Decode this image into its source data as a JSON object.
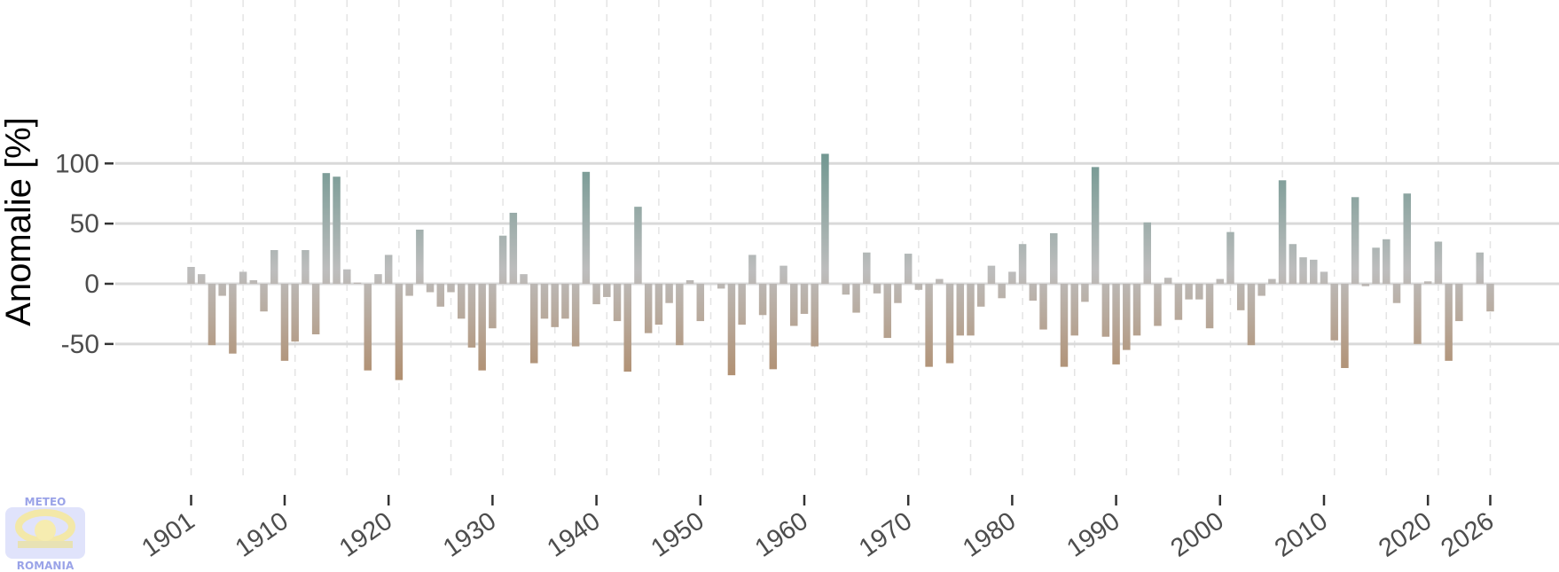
{
  "chart_data": {
    "type": "bar",
    "ylabel": "Anomalie [%]",
    "xlabel": "",
    "ylim": [
      -80,
      108
    ],
    "xlim": [
      1900,
      2033
    ],
    "yticks": [
      -50,
      0,
      50,
      100
    ],
    "xticks": [
      "1901",
      "1910",
      "1920",
      "1930",
      "1940",
      "1950",
      "1960",
      "1970",
      "1980",
      "1990",
      "2000",
      "2010",
      "2020",
      "2026"
    ],
    "grid": true,
    "colors": {
      "positive_high": "#1f6e62",
      "neutral": "#bdbdbd",
      "negative_low": "#a06a32",
      "gridline": "#d9d9d9"
    },
    "x": [
      1901,
      1902,
      1903,
      1904,
      1905,
      1906,
      1907,
      1908,
      1909,
      1910,
      1911,
      1912,
      1913,
      1914,
      1915,
      1916,
      1917,
      1918,
      1919,
      1920,
      1921,
      1922,
      1923,
      1924,
      1925,
      1926,
      1927,
      1928,
      1929,
      1930,
      1931,
      1932,
      1933,
      1934,
      1935,
      1936,
      1937,
      1938,
      1939,
      1940,
      1941,
      1942,
      1943,
      1944,
      1945,
      1946,
      1947,
      1948,
      1949,
      1950,
      1951,
      1952,
      1953,
      1954,
      1955,
      1956,
      1957,
      1958,
      1959,
      1960,
      1961,
      1962,
      1963,
      1964,
      1965,
      1966,
      1967,
      1968,
      1969,
      1970,
      1971,
      1972,
      1973,
      1974,
      1975,
      1976,
      1977,
      1978,
      1979,
      1980,
      1981,
      1982,
      1983,
      1984,
      1985,
      1986,
      1987,
      1988,
      1989,
      1990,
      1991,
      1992,
      1993,
      1994,
      1995,
      1996,
      1997,
      1998,
      1999,
      2000,
      2001,
      2002,
      2003,
      2004,
      2005,
      2006,
      2007,
      2008,
      2009,
      2010,
      2011,
      2012,
      2013,
      2014,
      2015,
      2016,
      2017,
      2018,
      2019,
      2020,
      2021,
      2022,
      2023,
      2024,
      2025,
      2026
    ],
    "values": [
      14,
      8,
      -51,
      -10,
      -58,
      10,
      3,
      -23,
      28,
      -64,
      -48,
      28,
      -42,
      92,
      89,
      12,
      1,
      -72,
      8,
      24,
      -80,
      -10,
      45,
      -7,
      -19,
      -7,
      -29,
      -53,
      -72,
      -37,
      40,
      59,
      8,
      -66,
      -29,
      -36,
      -29,
      -52,
      93,
      -17,
      -11,
      -31,
      -73,
      64,
      -41,
      -34,
      -16,
      -51,
      3,
      -31,
      0,
      -4,
      -76,
      -34,
      24,
      -26,
      -71,
      15,
      -35,
      -25,
      -52,
      108,
      0,
      -9,
      -24,
      26,
      -8,
      -45,
      -16,
      25,
      -5,
      -69,
      4,
      -66,
      -43,
      -43,
      -19,
      15,
      -12,
      10,
      33,
      -14,
      -38,
      42,
      -69,
      -43,
      -15,
      97,
      -44,
      -67,
      -55,
      -43,
      51,
      -35,
      5,
      -30,
      -13,
      -13,
      -37,
      4,
      43,
      -22,
      -51,
      -10,
      4,
      86,
      33,
      22,
      20,
      10,
      -47,
      -70,
      72,
      -2,
      30,
      37,
      -16,
      75,
      -50,
      2,
      35,
      -64,
      -31,
      0,
      26,
      -23
    ]
  }
}
